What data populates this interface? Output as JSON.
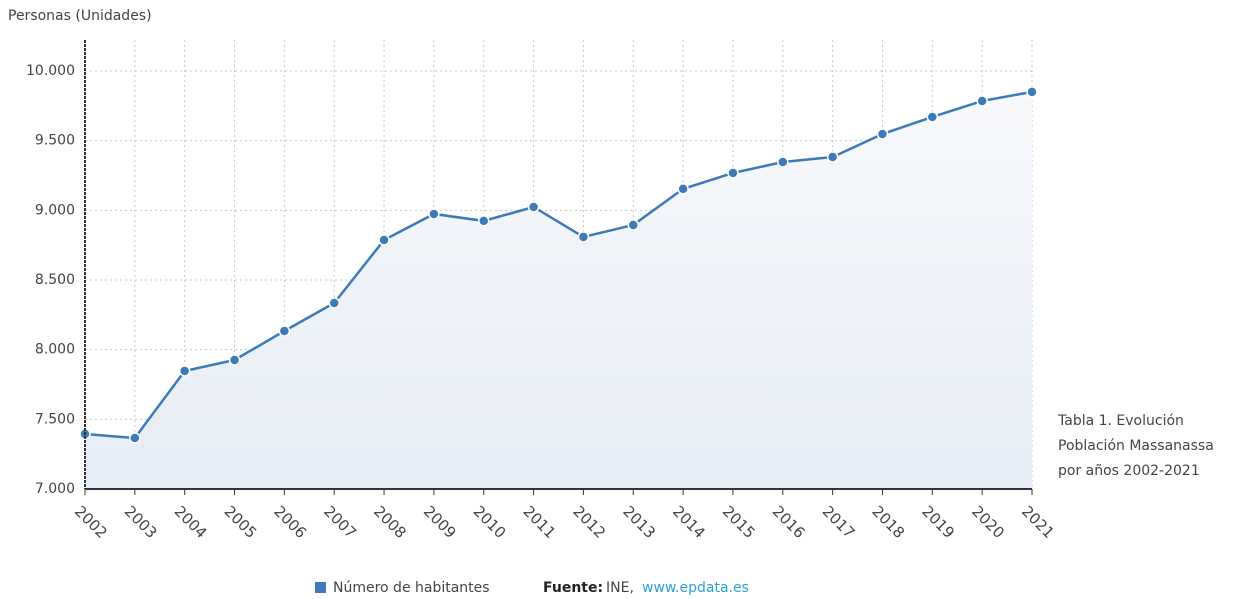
{
  "chart_data": {
    "type": "line",
    "y_axis_label": "Personas (Unidades)",
    "categories": [
      "2002",
      "2003",
      "2004",
      "2005",
      "2006",
      "2007",
      "2008",
      "2009",
      "2010",
      "2011",
      "2012",
      "2013",
      "2014",
      "2015",
      "2016",
      "2017",
      "2018",
      "2019",
      "2020",
      "2021"
    ],
    "series": [
      {
        "name": "Número de habitantes",
        "color": "#3d7ab8",
        "values": [
          7395,
          7366,
          7847,
          7926,
          8134,
          8335,
          8787,
          8974,
          8924,
          9024,
          8809,
          8895,
          9154,
          9268,
          9347,
          9383,
          9548,
          9670,
          9785,
          9850
        ]
      }
    ],
    "ylim": [
      7000,
      10000
    ],
    "yticks": [
      {
        "value": 7000,
        "label": "7.000"
      },
      {
        "value": 7500,
        "label": "7.500"
      },
      {
        "value": 8000,
        "label": "8.000"
      },
      {
        "value": 8500,
        "label": "8.500"
      },
      {
        "value": 9000,
        "label": "9.000"
      },
      {
        "value": 9500,
        "label": "9.500"
      },
      {
        "value": 10000,
        "label": "10.000"
      }
    ],
    "grid": true,
    "caption": [
      "Tabla 1. Evolución",
      "Población Massanassa",
      "por años 2002-2021"
    ],
    "source": {
      "label": "Fuente:",
      "name": "INE,",
      "link": "www.epdata.es"
    }
  }
}
